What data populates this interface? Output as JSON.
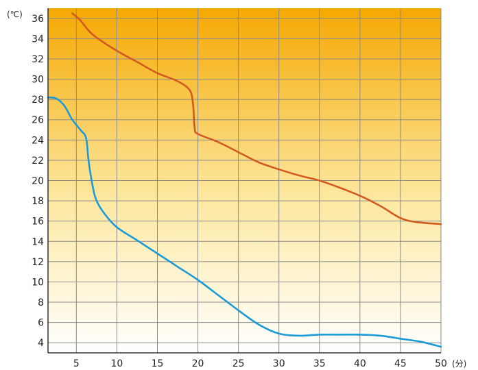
{
  "chart_data": {
    "type": "line",
    "y_unit": "(℃)",
    "x_unit": "(分)",
    "xlim": [
      1.5,
      50
    ],
    "ylim": [
      3,
      37
    ],
    "x_ticks": [
      5,
      10,
      15,
      20,
      25,
      30,
      35,
      40,
      45,
      50
    ],
    "y_ticks": [
      4,
      6,
      8,
      10,
      12,
      14,
      16,
      18,
      20,
      22,
      24,
      26,
      28,
      30,
      32,
      34,
      36
    ],
    "grid": true,
    "background_gradient": [
      "#f5a800",
      "#fde8a0",
      "#ffffff"
    ],
    "series": [
      {
        "color": "#d35a1f",
        "x": [
          4.5,
          5.5,
          6.5,
          7.5,
          10,
          12.5,
          15,
          17.5,
          19,
          19.4,
          19.6,
          20,
          22.5,
          25,
          27.5,
          30,
          32.5,
          35,
          37.5,
          40,
          42.5,
          45,
          47,
          50
        ],
        "y": [
          36.5,
          35.8,
          34.8,
          34.1,
          32.8,
          31.7,
          30.6,
          29.8,
          28.9,
          27.5,
          25.2,
          24.6,
          23.8,
          22.8,
          21.8,
          21.1,
          20.5,
          20.0,
          19.3,
          18.5,
          17.5,
          16.3,
          15.9,
          15.7
        ]
      },
      {
        "color": "#1a9ad6",
        "x": [
          1.5,
          2.5,
          3.5,
          4.5,
          5.5,
          6.2,
          6.5,
          7,
          7.5,
          8.5,
          10,
          12.5,
          15,
          17.5,
          20,
          22.5,
          25,
          27.5,
          30,
          32.5,
          35,
          37.5,
          40,
          42.5,
          45,
          47.5,
          50
        ],
        "y": [
          28.2,
          28.1,
          27.4,
          26.0,
          25.0,
          24.2,
          22.0,
          19.5,
          18.0,
          16.7,
          15.4,
          14.1,
          12.8,
          11.5,
          10.2,
          8.7,
          7.2,
          5.8,
          4.9,
          4.7,
          4.8,
          4.8,
          4.8,
          4.7,
          4.4,
          4.1,
          3.6
        ]
      }
    ]
  }
}
